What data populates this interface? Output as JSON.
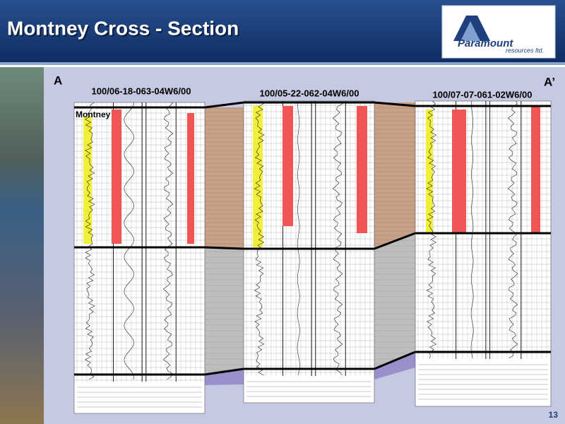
{
  "header": {
    "title": "Montney Cross - Section"
  },
  "logo": {
    "name": "Paramount",
    "subtitle": "resources ltd."
  },
  "section": {
    "start_label": "A",
    "end_label": "A’",
    "formation_label": "Montney",
    "wells": [
      {
        "name": "100/06-18-063-04W6/00"
      },
      {
        "name": "100/05-22-062-04W6/00"
      },
      {
        "name": "100/07-07-061-02W6/00"
      }
    ]
  },
  "page_number": "13"
}
